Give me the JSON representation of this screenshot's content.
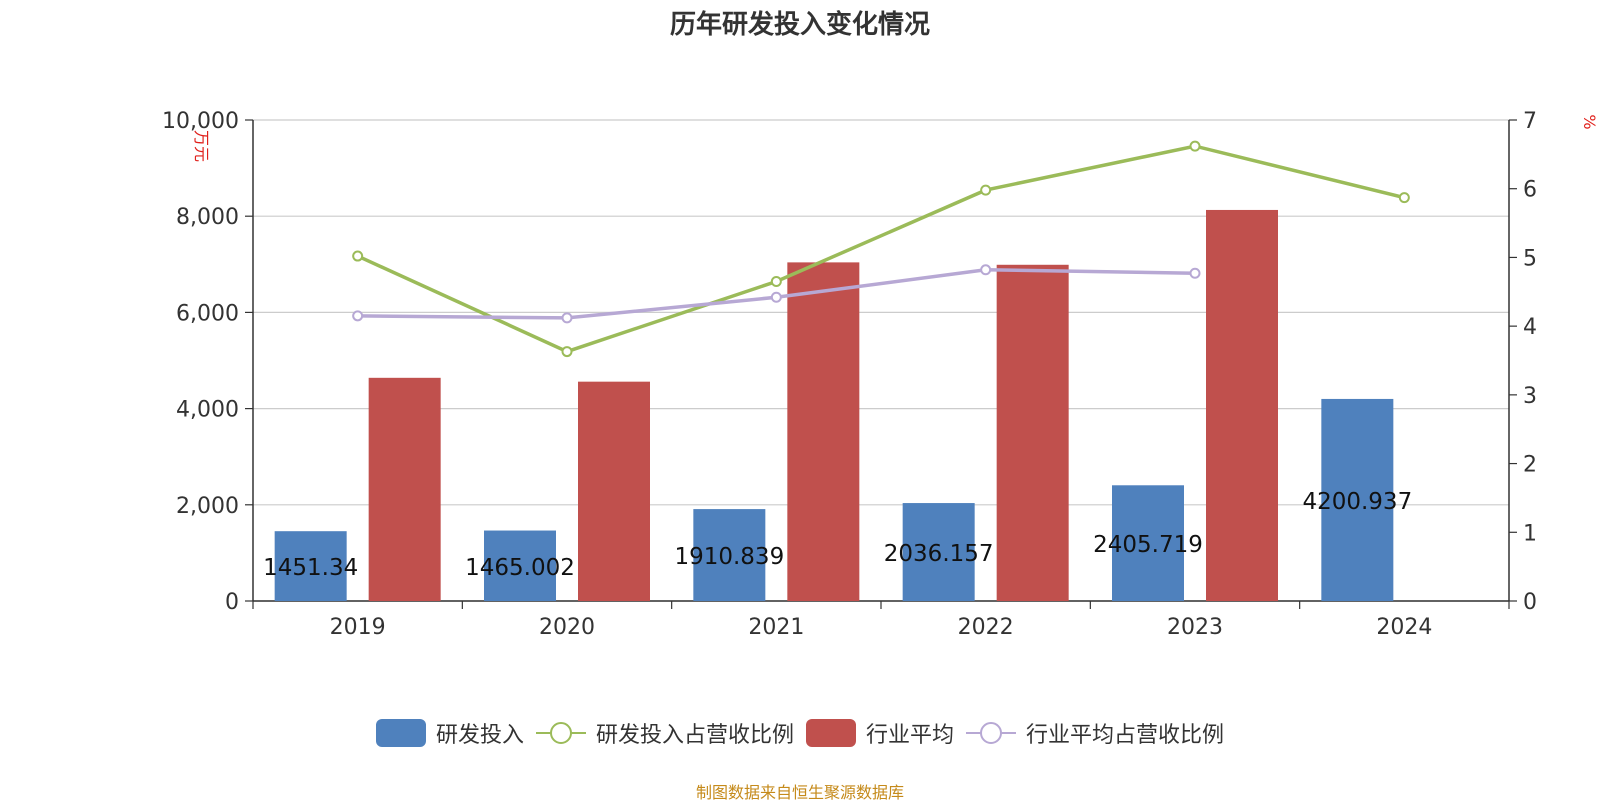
{
  "chart_data": {
    "title": "历年研发投入变化情况",
    "categories": [
      "2019",
      "2020",
      "2021",
      "2022",
      "2023",
      "2024"
    ],
    "y_left": {
      "unit": "万元",
      "ylim": [
        0,
        10000
      ],
      "ticks": [
        0,
        2000,
        4000,
        6000,
        8000,
        10000
      ],
      "tick_labels": [
        "0",
        "2,000",
        "4,000",
        "6,000",
        "8,000",
        "10,000"
      ]
    },
    "y_right": {
      "unit": "%",
      "ylim": [
        0,
        7
      ],
      "ticks": [
        0,
        1,
        2,
        3,
        4,
        5,
        6,
        7
      ],
      "tick_labels": [
        "0",
        "1",
        "2",
        "3",
        "4",
        "5",
        "6",
        "7"
      ]
    },
    "series": [
      {
        "name": "研发投入",
        "type": "bar",
        "axis": "left",
        "color": "#4f81bd",
        "values": [
          1451.34,
          1465.002,
          1910.839,
          2036.157,
          2405.719,
          4200.937
        ],
        "labels": [
          "1451.34",
          "1465.002",
          "1910.839",
          "2036.157",
          "2405.719",
          "4200.937"
        ]
      },
      {
        "name": "研发投入占营收比例",
        "type": "line",
        "axis": "right",
        "color": "#9bbb59",
        "values": [
          5.02,
          3.63,
          4.65,
          5.98,
          6.62,
          5.87
        ]
      },
      {
        "name": "行业平均",
        "type": "bar",
        "axis": "left",
        "color": "#c0504d",
        "values": [
          4640,
          4560,
          7040,
          6990,
          8130,
          null
        ]
      },
      {
        "name": "行业平均占营收比例",
        "type": "line",
        "axis": "right",
        "color": "#b7a8d4",
        "values": [
          4.15,
          4.12,
          4.42,
          4.82,
          4.77,
          null
        ]
      }
    ],
    "grid": true,
    "legend_position": "bottom"
  },
  "source": "制图数据来自恒生聚源数据库"
}
